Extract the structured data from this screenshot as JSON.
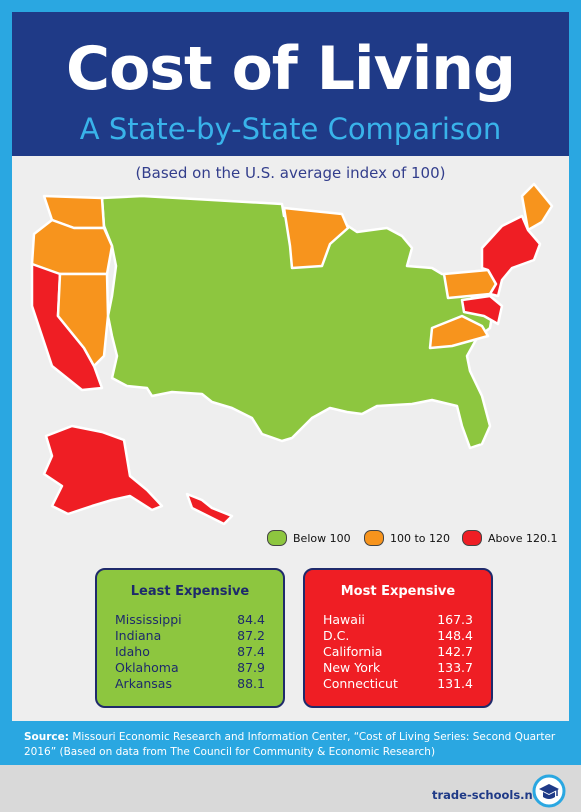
{
  "header": {
    "title": "Cost of Living",
    "subtitle": "A State-by-State Comparison"
  },
  "note": "(Based on the U.S. average index of 100)",
  "legend": [
    {
      "label": "Below 100",
      "color": "#8dc63f"
    },
    {
      "label": "100 to 120",
      "color": "#f7941d"
    },
    {
      "label": "Above 120.1",
      "color": "#ef1e24"
    }
  ],
  "least": {
    "title": "Least Expensive",
    "rows": [
      {
        "state": "Mississippi",
        "value": "84.4"
      },
      {
        "state": "Indiana",
        "value": "87.2"
      },
      {
        "state": "Idaho",
        "value": "87.4"
      },
      {
        "state": "Oklahoma",
        "value": "87.9"
      },
      {
        "state": "Arkansas",
        "value": "88.1"
      }
    ]
  },
  "most": {
    "title": "Most Expensive",
    "rows": [
      {
        "state": "Hawaii",
        "value": "167.3"
      },
      {
        "state": "D.C.",
        "value": "148.4"
      },
      {
        "state": "California",
        "value": "142.7"
      },
      {
        "state": "New York",
        "value": "133.7"
      },
      {
        "state": "Connecticut",
        "value": "131.4"
      }
    ]
  },
  "source": {
    "label": "Source:",
    "text": " Missouri Economic Research and Information Center, “Cost of Living Series: Second Quarter 2016” (Based on data from The Council for Community & Economic Research)"
  },
  "brand": "trade-schools.net"
}
